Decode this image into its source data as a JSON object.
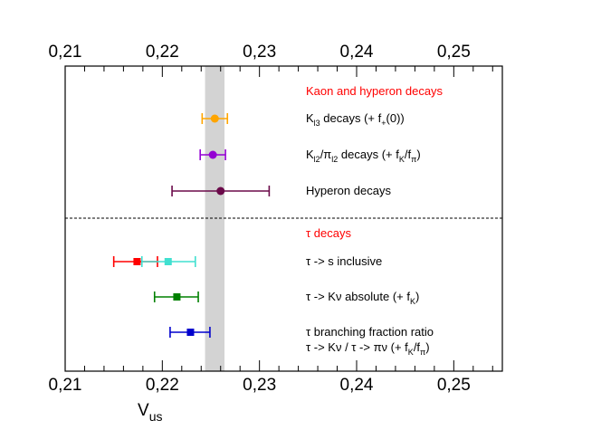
{
  "chart_data": {
    "type": "scatter",
    "subtype": "forest-plot-with-horizontal-error-bars",
    "xlabel": "V",
    "xlabel_sub": "us",
    "xlim": [
      0.21,
      0.255
    ],
    "tick_labels": [
      "0,21",
      "0,22",
      "0,23",
      "0,24",
      "0,25"
    ],
    "tick_values": [
      0.21,
      0.22,
      0.23,
      0.24,
      0.25
    ],
    "band": {
      "from": 0.2244,
      "to": 0.2264,
      "color": "#d3d3d3"
    },
    "sections": [
      {
        "title": "Kaon and hyperon decays",
        "color": "#ff0000"
      },
      {
        "title_symbol": "τ",
        "title": " decays",
        "color": "#ff0000"
      }
    ],
    "entries": [
      {
        "name": "kl3",
        "label_parts": [
          {
            "t": "K"
          },
          {
            "t": "l3",
            "s": "sub"
          },
          {
            "t": " decays (+ f"
          },
          {
            "t": "+",
            "s": "sub"
          },
          {
            "t": "(0))"
          }
        ],
        "points": [
          {
            "value": 0.2254,
            "low": 0.2241,
            "high": 0.2267,
            "color": "#ffa500",
            "marker": "circle"
          }
        ]
      },
      {
        "name": "kl2",
        "label_parts": [
          {
            "t": "K"
          },
          {
            "t": "l2",
            "s": "sub"
          },
          {
            "t": "/π"
          },
          {
            "t": "l2",
            "s": "sub"
          },
          {
            "t": " decays (+ f"
          },
          {
            "t": "K",
            "s": "sub"
          },
          {
            "t": "/f"
          },
          {
            "t": "π",
            "s": "sub"
          },
          {
            "t": ")"
          }
        ],
        "points": [
          {
            "value": 0.2252,
            "low": 0.2239,
            "high": 0.2265,
            "color": "#9400d3",
            "marker": "circle"
          }
        ]
      },
      {
        "name": "hyperon",
        "label_parts": [
          {
            "t": "Hyperon decays"
          }
        ],
        "points": [
          {
            "value": 0.226,
            "low": 0.221,
            "high": 0.231,
            "color": "#6b0a4a",
            "marker": "circle"
          }
        ]
      },
      {
        "name": "tau-inclusive",
        "label_parts": [
          {
            "t": "τ -> s inclusive"
          }
        ],
        "points": [
          {
            "value": 0.2174,
            "low": 0.215,
            "high": 0.2195,
            "color": "#ff0000",
            "marker": "square"
          },
          {
            "value": 0.2206,
            "low": 0.2179,
            "high": 0.2234,
            "color": "#40e0d0",
            "marker": "square"
          }
        ]
      },
      {
        "name": "tau-kv-absolute",
        "label_parts": [
          {
            "t": "τ -> Kν absolute (+ f"
          },
          {
            "t": "K",
            "s": "sub"
          },
          {
            "t": ")"
          }
        ],
        "points": [
          {
            "value": 0.2215,
            "low": 0.2192,
            "high": 0.2237,
            "color": "#008000",
            "marker": "square"
          }
        ]
      },
      {
        "name": "tau-branching-ratio",
        "label_parts": [
          {
            "t": "τ  branching fraction ratio"
          }
        ],
        "label2_parts": [
          {
            "t": "τ -> Kν / τ -> πν  (+ f"
          },
          {
            "t": "K",
            "s": "sub"
          },
          {
            "t": "/f"
          },
          {
            "t": "π",
            "s": "sub"
          },
          {
            "t": ")"
          }
        ],
        "points": [
          {
            "value": 0.2229,
            "low": 0.2208,
            "high": 0.2249,
            "color": "#0000cd",
            "marker": "square"
          }
        ]
      }
    ]
  }
}
